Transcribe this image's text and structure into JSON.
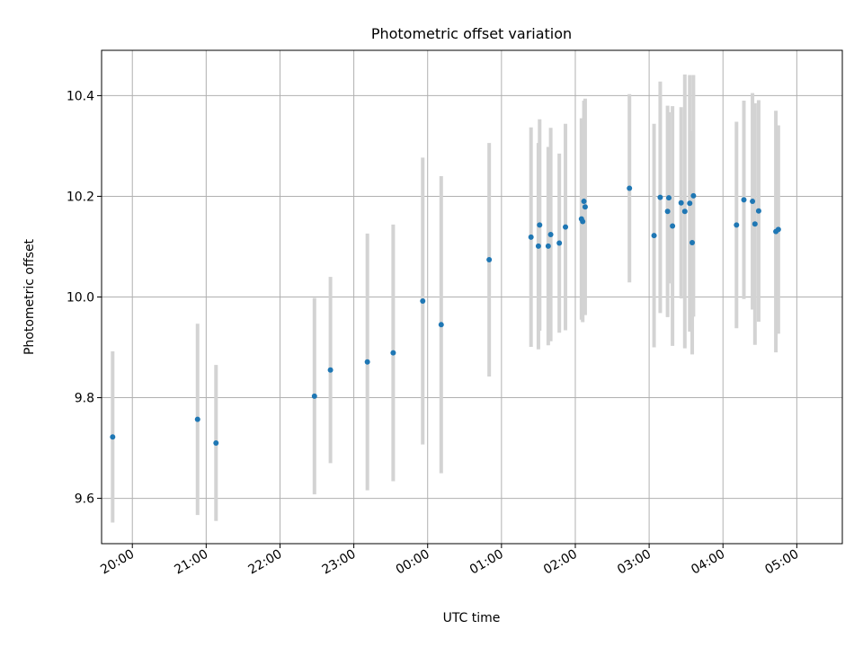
{
  "chart_data": {
    "type": "scatter",
    "title": "Photometric offset variation",
    "xlabel": "UTC time",
    "ylabel": "Photometric offset",
    "grid": true,
    "xlim": [
      "19:35",
      "05:37"
    ],
    "ylim": [
      9.51,
      10.49
    ],
    "x_ticks": [
      "20:00",
      "21:00",
      "22:00",
      "23:00",
      "00:00",
      "01:00",
      "02:00",
      "03:00",
      "04:00",
      "05:00"
    ],
    "y_ticks": [
      "9.6",
      "9.8",
      "10.0",
      "10.2",
      "10.4"
    ],
    "colors": {
      "point": "#1f77b4",
      "errorbar": "#d3d3d3",
      "grid": "#b0b0b0"
    },
    "points": [
      {
        "t": "19:44",
        "y": 9.722,
        "err": 0.17
      },
      {
        "t": "20:53",
        "y": 9.757,
        "err": 0.19
      },
      {
        "t": "21:08",
        "y": 9.71,
        "err": 0.155
      },
      {
        "t": "22:28",
        "y": 9.803,
        "err": 0.195
      },
      {
        "t": "22:41",
        "y": 9.855,
        "err": 0.185
      },
      {
        "t": "23:11",
        "y": 9.871,
        "err": 0.255
      },
      {
        "t": "23:32",
        "y": 9.889,
        "err": 0.255
      },
      {
        "t": "23:56",
        "y": 9.992,
        "err": 0.285
      },
      {
        "t": "00:11",
        "y": 9.945,
        "err": 0.295
      },
      {
        "t": "00:50",
        "y": 10.074,
        "err": 0.232
      },
      {
        "t": "01:24",
        "y": 10.119,
        "err": 0.218
      },
      {
        "t": "01:30",
        "y": 10.101,
        "err": 0.205
      },
      {
        "t": "01:31",
        "y": 10.143,
        "err": 0.21
      },
      {
        "t": "01:38",
        "y": 10.101,
        "err": 0.197
      },
      {
        "t": "01:40",
        "y": 10.124,
        "err": 0.212
      },
      {
        "t": "01:47",
        "y": 10.107,
        "err": 0.178
      },
      {
        "t": "01:52",
        "y": 10.139,
        "err": 0.205
      },
      {
        "t": "02:05",
        "y": 10.155,
        "err": 0.2
      },
      {
        "t": "02:06",
        "y": 10.15,
        "err": 0.2
      },
      {
        "t": "02:07",
        "y": 10.19,
        "err": 0.2
      },
      {
        "t": "02:08",
        "y": 10.179,
        "err": 0.215
      },
      {
        "t": "02:44",
        "y": 10.216,
        "err": 0.187
      },
      {
        "t": "03:04",
        "y": 10.122,
        "err": 0.222
      },
      {
        "t": "03:09",
        "y": 10.198,
        "err": 0.23
      },
      {
        "t": "03:15",
        "y": 10.17,
        "err": 0.21
      },
      {
        "t": "03:16",
        "y": 10.197,
        "err": 0.17
      },
      {
        "t": "03:19",
        "y": 10.141,
        "err": 0.238
      },
      {
        "t": "03:26",
        "y": 10.187,
        "err": 0.19
      },
      {
        "t": "03:29",
        "y": 10.17,
        "err": 0.272
      },
      {
        "t": "03:33",
        "y": 10.186,
        "err": 0.255
      },
      {
        "t": "03:35",
        "y": 10.108,
        "err": 0.222
      },
      {
        "t": "03:36",
        "y": 10.201,
        "err": 0.24
      },
      {
        "t": "04:11",
        "y": 10.143,
        "err": 0.205
      },
      {
        "t": "04:17",
        "y": 10.193,
        "err": 0.197
      },
      {
        "t": "04:24",
        "y": 10.19,
        "err": 0.215
      },
      {
        "t": "04:26",
        "y": 10.145,
        "err": 0.24
      },
      {
        "t": "04:29",
        "y": 10.171,
        "err": 0.22
      },
      {
        "t": "04:43",
        "y": 10.13,
        "err": 0.24
      },
      {
        "t": "04:45",
        "y": 10.134,
        "err": 0.207
      }
    ]
  }
}
